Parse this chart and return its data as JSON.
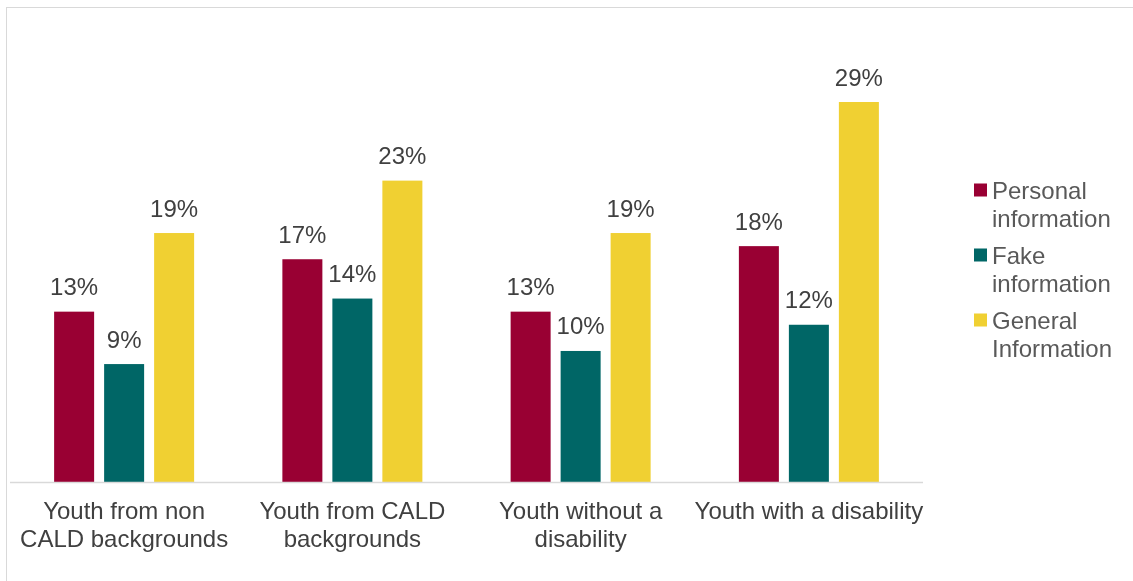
{
  "chart_data": {
    "type": "bar",
    "categories": [
      "Youth from non CALD backgrounds",
      "Youth from CALD backgrounds",
      "Youth without a disability",
      "Youth with a disability"
    ],
    "series": [
      {
        "name": "Personal information",
        "color": "#990033",
        "values": [
          13,
          17,
          13,
          18
        ],
        "value_labels": [
          "13%",
          "17%",
          "13%",
          "18%"
        ]
      },
      {
        "name": "Fake information",
        "color": "#006666",
        "values": [
          9,
          14,
          10,
          12
        ],
        "value_labels": [
          "9%",
          "14%",
          "10%",
          "12%"
        ]
      },
      {
        "name": "General Information",
        "color": "#f0d032",
        "values": [
          19,
          23,
          19,
          29
        ],
        "value_labels": [
          "19%",
          "23%",
          "19%",
          "29%"
        ]
      }
    ],
    "legend": "right"
  }
}
